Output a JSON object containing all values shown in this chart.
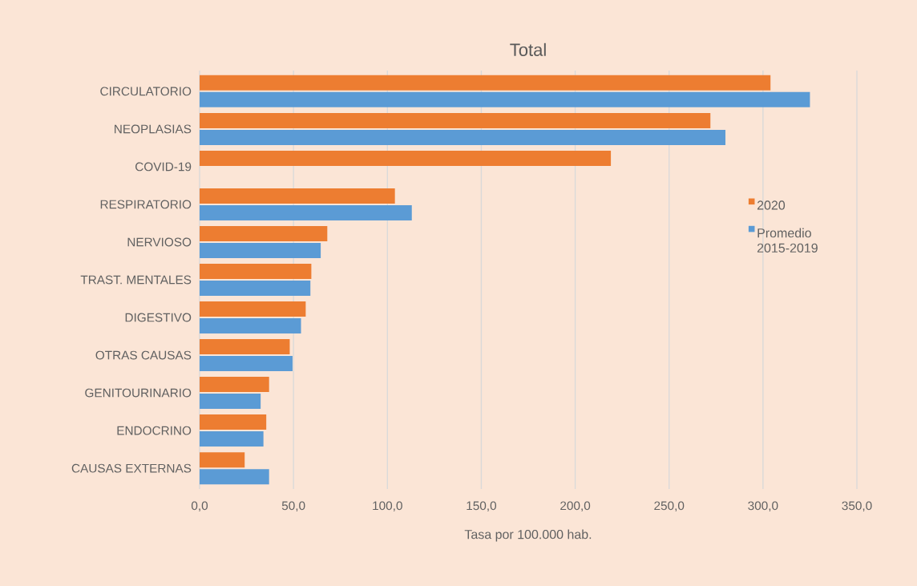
{
  "chart_data": {
    "type": "bar",
    "orientation": "horizontal",
    "title": "Total",
    "xlabel": "Tasa por 100.000 hab.",
    "categories": [
      "CIRCULATORIO",
      "NEOPLASIAS",
      "COVID-19",
      "RESPIRATORIO",
      "NERVIOSO",
      "TRAST. MENTALES",
      "DIGESTIVO",
      "OTRAS CAUSAS",
      "GENITOURINARIO",
      "ENDOCRINO",
      "CAUSAS EXTERNAS"
    ],
    "series": [
      {
        "name": "2020",
        "color": "#ed7d31",
        "values": [
          304,
          272,
          219,
          104,
          68,
          59.5,
          56.5,
          48,
          37,
          35.5,
          24
        ]
      },
      {
        "name": "Promedio 2015-2019",
        "color": "#5b9bd5",
        "values": [
          325,
          280,
          null,
          113,
          64.5,
          59,
          54,
          49.5,
          32.5,
          34,
          37
        ]
      }
    ],
    "xlim": [
      0,
      350
    ],
    "xticks": [
      {
        "value": 0,
        "label": "0,0"
      },
      {
        "value": 50,
        "label": "50,0"
      },
      {
        "value": 100,
        "label": "100,0"
      },
      {
        "value": 150,
        "label": "150,0"
      },
      {
        "value": 200,
        "label": "200,0"
      },
      {
        "value": 250,
        "label": "250,0"
      },
      {
        "value": 300,
        "label": "300,0"
      },
      {
        "value": 350,
        "label": "350,0"
      }
    ],
    "grid": "x",
    "legend": "right"
  }
}
